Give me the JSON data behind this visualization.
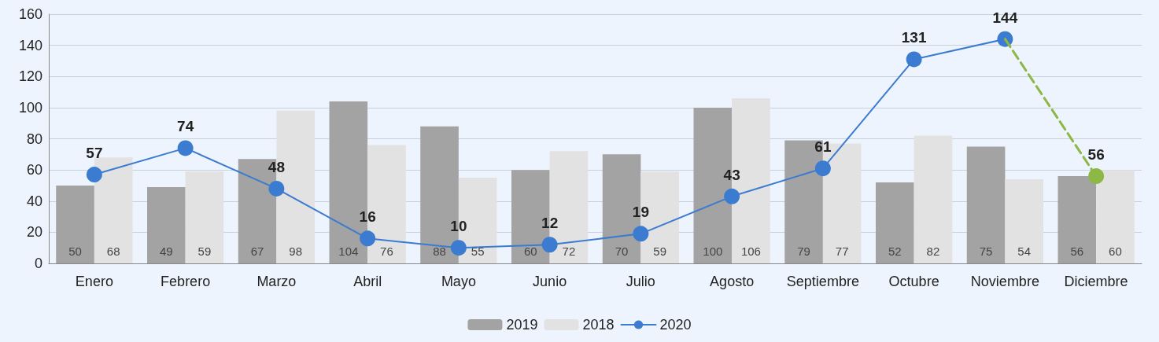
{
  "chart_data": {
    "type": "bar",
    "categories": [
      "Enero",
      "Febrero",
      "Marzo",
      "Abril",
      "Mayo",
      "Junio",
      "Julio",
      "Agosto",
      "Septiembre",
      "Octubre",
      "Noviembre",
      "Diciembre"
    ],
    "series": [
      {
        "name": "2019",
        "color": "#a3a3a3",
        "values": [
          50,
          49,
          67,
          104,
          88,
          60,
          70,
          100,
          79,
          52,
          75,
          56
        ]
      },
      {
        "name": "2018",
        "color": "#e2e2e2",
        "values": [
          68,
          59,
          98,
          76,
          55,
          72,
          59,
          106,
          77,
          82,
          54,
          60
        ]
      },
      {
        "type": "line",
        "color": "#8db845",
        "line_style": "dashed",
        "values": [
          null,
          null,
          null,
          null,
          null,
          null,
          null,
          null,
          null,
          null,
          144,
          56
        ],
        "value_labels": [
          null,
          null,
          null,
          null,
          null,
          null,
          null,
          null,
          null,
          null,
          null,
          "56"
        ]
      },
      {
        "name": "2020",
        "type": "line",
        "color": "#3b7bd0",
        "line_style": "solid",
        "values": [
          57,
          74,
          48,
          16,
          10,
          12,
          19,
          43,
          61,
          131,
          144,
          null
        ],
        "value_labels": [
          "57",
          "74",
          "48",
          "16",
          "10",
          "12",
          "19",
          "43",
          "61",
          "131",
          "144",
          null
        ]
      }
    ],
    "ylim": [
      0,
      160
    ],
    "yticks": [
      0,
      20,
      40,
      60,
      80,
      100,
      120,
      140,
      160
    ],
    "grid": "y",
    "legend": "bottom",
    "marker": "circle",
    "data_labels": true
  }
}
